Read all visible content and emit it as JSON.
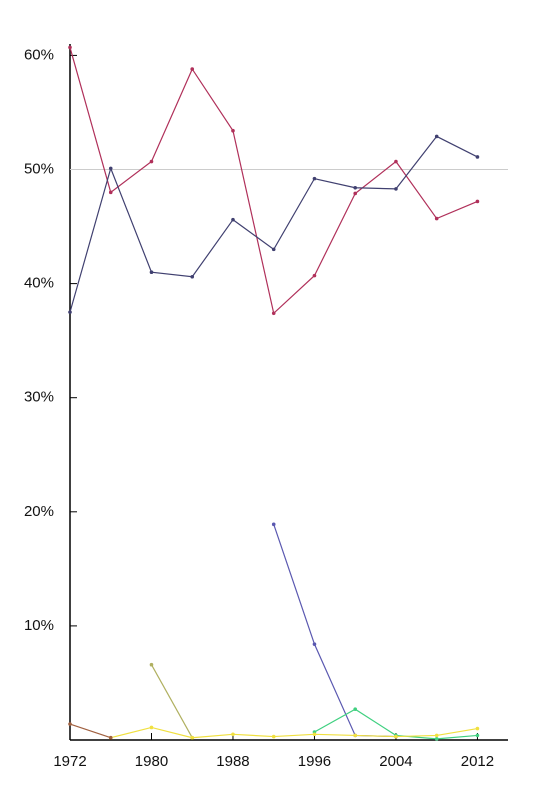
{
  "chart_data": {
    "type": "line",
    "x": [
      1972,
      1976,
      1980,
      1984,
      1988,
      1992,
      1996,
      2000,
      2004,
      2008,
      2012
    ],
    "series": [
      {
        "color": "#b0305a",
        "values": [
          60.7,
          48.0,
          50.7,
          58.8,
          53.4,
          37.4,
          40.7,
          47.9,
          50.7,
          45.7,
          47.2
        ]
      },
      {
        "color": "#404070",
        "values": [
          37.5,
          50.1,
          41.0,
          40.6,
          45.6,
          43.0,
          49.2,
          48.4,
          48.3,
          52.9,
          51.1
        ]
      },
      {
        "color": "#5a58b0",
        "values": [
          null,
          null,
          null,
          null,
          null,
          18.9,
          8.4,
          0.4,
          0.3,
          null,
          null
        ]
      },
      {
        "color": "#b0b060",
        "values": [
          null,
          null,
          6.6,
          0.2,
          null,
          null,
          null,
          null,
          null,
          null,
          null
        ]
      },
      {
        "color": "#40d080",
        "values": [
          null,
          null,
          null,
          null,
          null,
          null,
          0.7,
          2.7,
          0.4,
          0.1,
          0.4
        ]
      },
      {
        "color": "#f0e040",
        "values": [
          null,
          0.2,
          1.1,
          0.2,
          0.5,
          0.3,
          0.5,
          0.4,
          0.3,
          0.4,
          1.0
        ]
      },
      {
        "color": "#a06040",
        "values": [
          1.4,
          0.2,
          null,
          null,
          null,
          null,
          null,
          null,
          null,
          null,
          null
        ]
      }
    ],
    "reference_line": 50,
    "xlim": [
      1972,
      2015
    ],
    "xticks": [
      1972,
      1980,
      1988,
      1996,
      2004,
      2012
    ],
    "ylim": [
      0,
      61
    ],
    "yticks": [
      {
        "value": 10,
        "label": "10%"
      },
      {
        "value": 20,
        "label": "20%"
      },
      {
        "value": 30,
        "label": "30%"
      },
      {
        "value": 40,
        "label": "40%"
      },
      {
        "value": 50,
        "label": "50%"
      },
      {
        "value": 60,
        "label": "60%"
      }
    ]
  }
}
